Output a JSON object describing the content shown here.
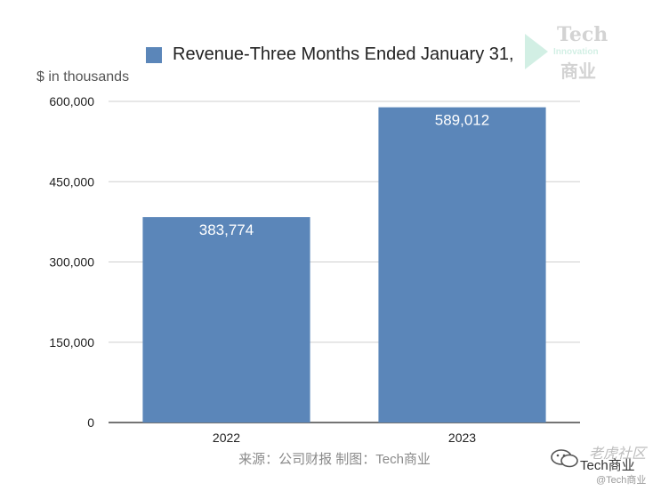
{
  "chart_data": {
    "type": "bar",
    "legend": "Revenue-Three Months Ended January 31,",
    "unit_label": "$ in thousands",
    "categories": [
      "2022",
      "2023"
    ],
    "values": [
      383774,
      589012
    ],
    "value_labels": [
      "383,774",
      "589,012"
    ],
    "yticks": [
      0,
      150000,
      300000,
      450000,
      600000
    ],
    "ytick_labels": [
      "0",
      "150,000",
      "300,000",
      "450,000",
      "600,000"
    ],
    "ylim": [
      0,
      600000
    ],
    "grid": true,
    "legend_position": "top",
    "bar_color": "#5b86b9"
  },
  "source_note": "来源：公司财报 制图：Tech商业",
  "watermark": {
    "brand": "Tech",
    "tagline": "Innovation",
    "brand_cn": "商业"
  },
  "footer_watermark": {
    "community": "老虎社区",
    "account": "Tech商业",
    "handle": "@Tech商业"
  }
}
